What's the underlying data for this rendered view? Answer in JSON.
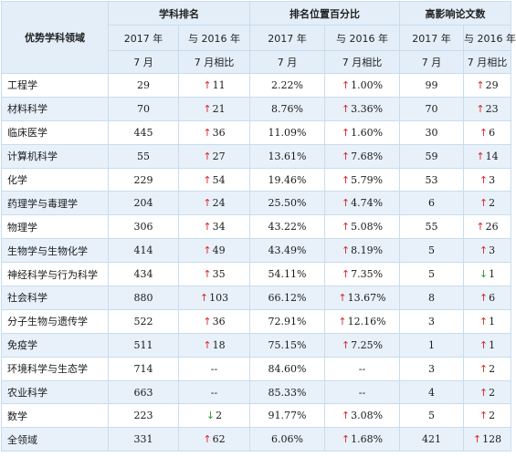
{
  "table": {
    "header": {
      "field_label": "优势学科领域",
      "groups": [
        "学科排名",
        "排名位置百分比",
        "高影响论文数"
      ],
      "sub_line1": [
        "2017 年",
        "与 2016 年",
        "2017 年",
        "与 2016 年",
        "2017 年",
        "与 2016 年"
      ],
      "sub_line2": [
        "7 月",
        "7 月相比",
        "7 月",
        "7 月相比",
        "7 月",
        "7 月相比"
      ]
    },
    "rows": [
      {
        "field": "工程学",
        "rank": "29",
        "rank_change": "11",
        "rank_dir": "up",
        "pct": "2.22%",
        "pct_change": "1.00%",
        "pct_dir": "up",
        "papers": "99",
        "papers_change": "29",
        "papers_dir": "up"
      },
      {
        "field": "材料科学",
        "rank": "70",
        "rank_change": "21",
        "rank_dir": "up",
        "pct": "8.76%",
        "pct_change": "3.36%",
        "pct_dir": "up",
        "papers": "70",
        "papers_change": "23",
        "papers_dir": "up"
      },
      {
        "field": "临床医学",
        "rank": "445",
        "rank_change": "36",
        "rank_dir": "up",
        "pct": "11.09%",
        "pct_change": "1.60%",
        "pct_dir": "up",
        "papers": "30",
        "papers_change": "6",
        "papers_dir": "up"
      },
      {
        "field": "计算机科学",
        "rank": "55",
        "rank_change": "27",
        "rank_dir": "up",
        "pct": "13.61%",
        "pct_change": "7.68%",
        "pct_dir": "up",
        "papers": "59",
        "papers_change": "14",
        "papers_dir": "up"
      },
      {
        "field": "化学",
        "rank": "229",
        "rank_change": "54",
        "rank_dir": "up",
        "pct": "19.46%",
        "pct_change": "5.79%",
        "pct_dir": "up",
        "papers": "53",
        "papers_change": "3",
        "papers_dir": "up"
      },
      {
        "field": "药理学与毒理学",
        "rank": "204",
        "rank_change": "24",
        "rank_dir": "up",
        "pct": "25.50%",
        "pct_change": "4.74%",
        "pct_dir": "up",
        "papers": "6",
        "papers_change": "2",
        "papers_dir": "up"
      },
      {
        "field": "物理学",
        "rank": "306",
        "rank_change": "34",
        "rank_dir": "up",
        "pct": "43.22%",
        "pct_change": "5.08%",
        "pct_dir": "up",
        "papers": "55",
        "papers_change": "26",
        "papers_dir": "up"
      },
      {
        "field": "生物学与生物化学",
        "rank": "414",
        "rank_change": "49",
        "rank_dir": "up",
        "pct": "43.49%",
        "pct_change": "8.19%",
        "pct_dir": "up",
        "papers": "5",
        "papers_change": "3",
        "papers_dir": "up"
      },
      {
        "field": "神经科学与行为科学",
        "rank": "434",
        "rank_change": "35",
        "rank_dir": "up",
        "pct": "54.11%",
        "pct_change": "7.35%",
        "pct_dir": "up",
        "papers": "5",
        "papers_change": "1",
        "papers_dir": "down"
      },
      {
        "field": "社会科学",
        "rank": "880",
        "rank_change": "103",
        "rank_dir": "up",
        "pct": "66.12%",
        "pct_change": "13.67%",
        "pct_dir": "up",
        "papers": "8",
        "papers_change": "6",
        "papers_dir": "up"
      },
      {
        "field": "分子生物与遗传学",
        "rank": "522",
        "rank_change": "36",
        "rank_dir": "up",
        "pct": "72.91%",
        "pct_change": "12.16%",
        "pct_dir": "up",
        "papers": "3",
        "papers_change": "1",
        "papers_dir": "up"
      },
      {
        "field": "免疫学",
        "rank": "511",
        "rank_change": "18",
        "rank_dir": "up",
        "pct": "75.15%",
        "pct_change": "7.25%",
        "pct_dir": "up",
        "papers": "1",
        "papers_change": "1",
        "papers_dir": "up"
      },
      {
        "field": "环境科学与生态学",
        "rank": "714",
        "rank_change": "--",
        "rank_dir": "",
        "pct": "84.60%",
        "pct_change": "--",
        "pct_dir": "",
        "papers": "3",
        "papers_change": "2",
        "papers_dir": "up"
      },
      {
        "field": "农业科学",
        "rank": "663",
        "rank_change": "--",
        "rank_dir": "",
        "pct": "85.33%",
        "pct_change": "--",
        "pct_dir": "",
        "papers": "4",
        "papers_change": "2",
        "papers_dir": "up"
      },
      {
        "field": "数学",
        "rank": "223",
        "rank_change": "2",
        "rank_dir": "down",
        "pct": "91.77%",
        "pct_change": "3.08%",
        "pct_dir": "up",
        "papers": "5",
        "papers_change": "2",
        "papers_dir": "up"
      },
      {
        "field": "全领域",
        "rank": "331",
        "rank_change": "62",
        "rank_dir": "up",
        "pct": "6.06%",
        "pct_change": "1.68%",
        "pct_dir": "up",
        "papers": "421",
        "papers_change": "128",
        "papers_dir": "up"
      }
    ],
    "arrow_up": "↑",
    "arrow_down": "↓",
    "colors": {
      "header_bg": "#e3eef8",
      "stripe_bg": "#e8f1fa",
      "border": "#c9dceb",
      "up": "#d42a2a",
      "down": "#2a9b2a"
    }
  }
}
